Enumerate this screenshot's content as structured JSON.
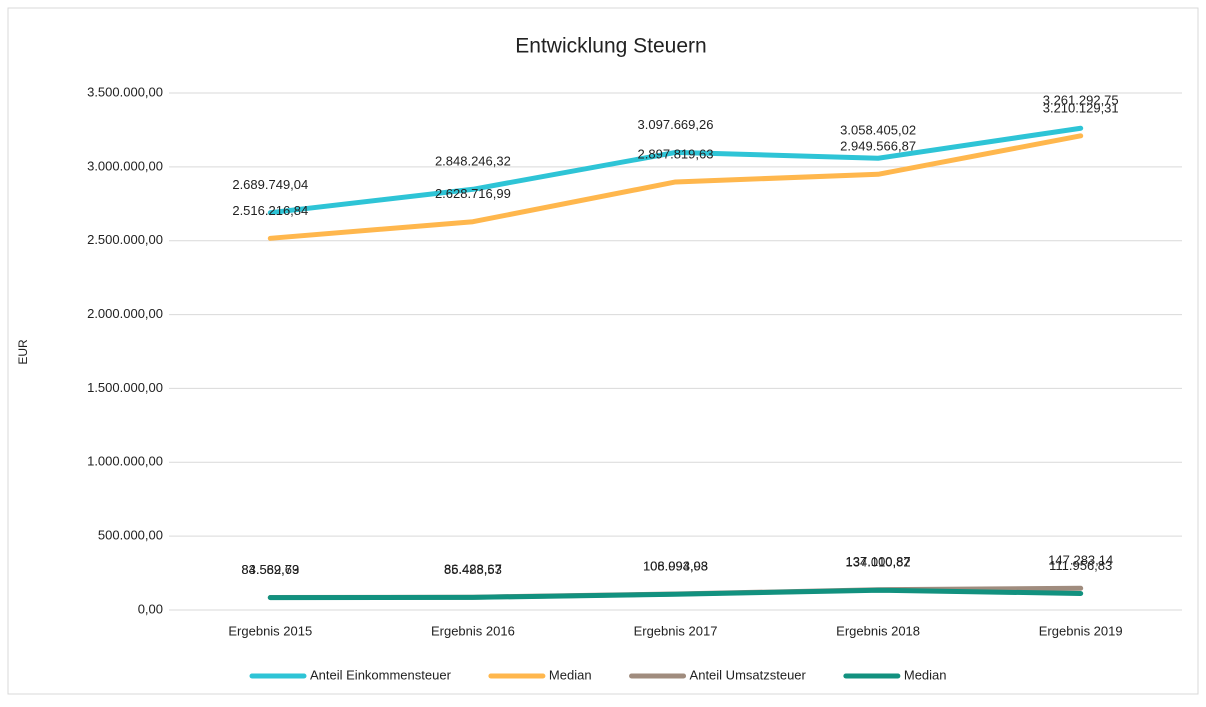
{
  "chart_data": {
    "type": "line",
    "title": "Entwicklung Steuern",
    "y_label": "EUR",
    "categories": [
      "Ergebnis 2015",
      "Ergebnis 2016",
      "Ergebnis 2017",
      "Ergebnis 2018",
      "Ergebnis 2019"
    ],
    "series": [
      {
        "name": "Anteil Einkommensteuer",
        "color": "#2ec4d6",
        "values": [
          2689749.04,
          2848246.32,
          3097669.26,
          3058405.02,
          3261292.75
        ],
        "value_labels": [
          "2.689.749,04",
          "2.848.246,32",
          "3.097.669,26",
          "3.058.405,02",
          "3.261.292,75"
        ]
      },
      {
        "name": "Median",
        "color": "#ffb74d",
        "values": [
          2516216.84,
          2628716.99,
          2897819.63,
          2949566.87,
          3210129.31
        ],
        "value_labels": [
          "2.516.216,84",
          "2.628.716,99",
          "2.897.819,63",
          "2.949.566,87",
          "3.210.129,31"
        ]
      },
      {
        "name": "Anteil Umsatzsteuer",
        "color": "#a08c7e",
        "values": [
          84569.79,
          86428.67,
          108094.98,
          137100.87,
          147283.14
        ],
        "value_labels": [
          "84.569,79",
          "86.428,67",
          "108.094,98",
          "137.100,87",
          "147.283,14"
        ]
      },
      {
        "name": "Median",
        "color": "#12917f",
        "values": [
          83582.63,
          85488.53,
          106993.03,
          134010.82,
          111956.83
        ],
        "value_labels": [
          "83.582,63",
          "85.488,53",
          "106.993,03",
          "134.010,82",
          "111.956,83"
        ]
      }
    ],
    "ylim": [
      0,
      3500000
    ],
    "yticks": [
      {
        "value": 0,
        "label": "0,00"
      },
      {
        "value": 500000,
        "label": "500.000,00"
      },
      {
        "value": 1000000,
        "label": "1.000.000,00"
      },
      {
        "value": 1500000,
        "label": "1.500.000,00"
      },
      {
        "value": 2000000,
        "label": "2.000.000,00"
      },
      {
        "value": 2500000,
        "label": "2.500.000,00"
      },
      {
        "value": 3000000,
        "label": "3.000.000,00"
      },
      {
        "value": 3500000,
        "label": "3.500.000,00"
      }
    ],
    "grid": true,
    "legend": "bottom"
  }
}
